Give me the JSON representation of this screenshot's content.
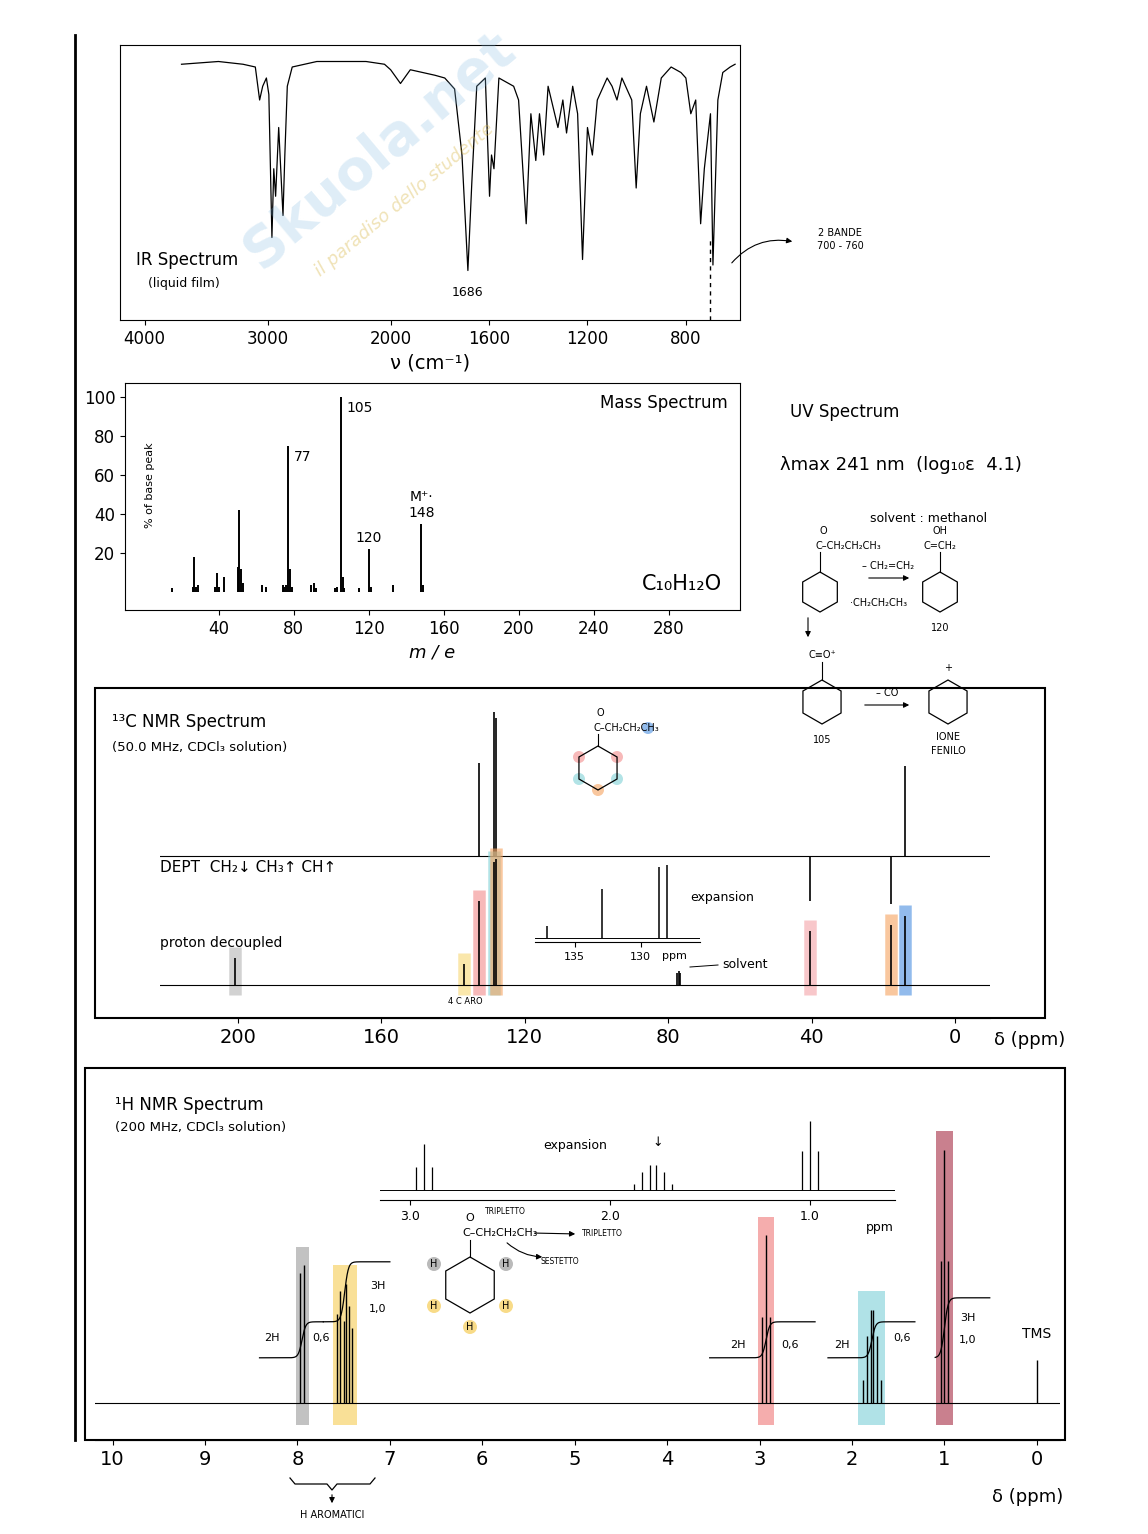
{
  "page": {
    "watermark": [
      "Skuola.net",
      "il paradiso dello studente"
    ]
  },
  "uv": {
    "title": "UV Spectrum",
    "text": "λmax 241 nm  (log₁₀ε  4.1)",
    "solvent": "solvent : methanol"
  },
  "fragmentation": [
    "O",
    "C–CH₂CH₂CH₃",
    "– CH₂=CH₂",
    "OH",
    "C=CH₂",
    "120",
    "·CH₂CH₂CH₃",
    "C≡O⁺",
    "105",
    "– CO",
    "IONE",
    "FENILO",
    "+"
  ],
  "chart_data": [
    {
      "type": "ir",
      "title": "IR Spectrum",
      "subtitle": "(liquid film)",
      "x_label": "ν (cm⁻¹)",
      "xlim": [
        4200,
        580
      ],
      "xticks": [
        4000,
        3000,
        2000,
        1600,
        1200,
        800
      ],
      "ylim": [
        0,
        100
      ],
      "tick_labels": "x",
      "x": [
        3700,
        3400,
        3200,
        3100,
        3065,
        3040,
        3010,
        2990,
        2965,
        2950,
        2935,
        2910,
        2875,
        2860,
        2840,
        2800,
        2600,
        2400,
        2200,
        2050,
        2000,
        1960,
        1920,
        1870,
        1820,
        1780,
        1740,
        1710,
        1686,
        1670,
        1650,
        1615,
        1598,
        1590,
        1580,
        1560,
        1500,
        1480,
        1449,
        1430,
        1410,
        1395,
        1378,
        1360,
        1320,
        1300,
        1285,
        1260,
        1240,
        1220,
        1200,
        1180,
        1160,
        1120,
        1100,
        1080,
        1060,
        1020,
        1002,
        985,
        960,
        930,
        900,
        860,
        820,
        800,
        780,
        760,
        740,
        725,
        700,
        690,
        670,
        650,
        620,
        600
      ],
      "values": [
        93,
        94,
        93,
        92,
        80,
        85,
        88,
        82,
        30,
        55,
        45,
        70,
        38,
        60,
        85,
        92,
        94,
        94,
        94,
        93,
        91,
        86,
        91,
        90,
        89,
        88,
        84,
        60,
        18,
        50,
        85,
        88,
        45,
        60,
        55,
        88,
        85,
        80,
        35,
        75,
        58,
        75,
        60,
        85,
        70,
        80,
        68,
        85,
        75,
        22,
        70,
        60,
        80,
        88,
        85,
        80,
        88,
        80,
        48,
        75,
        85,
        72,
        88,
        92,
        90,
        88,
        75,
        80,
        35,
        55,
        75,
        20,
        80,
        90,
        92,
        93
      ],
      "labeled_peaks": [
        1686
      ],
      "marked_x": [
        700
      ],
      "annotations": [
        "2 BANDE",
        "700 - 760"
      ]
    },
    {
      "type": "mass",
      "title": "Mass Spectrum",
      "y_label": "% of base peak",
      "x_label": "m / e",
      "formula": "C₁₀H₁₂O",
      "xlim": [
        -10,
        318
      ],
      "xticks": [
        40,
        80,
        120,
        160,
        200,
        240,
        280
      ],
      "ylim": [
        -9,
        107
      ],
      "yticks": [
        20,
        40,
        60,
        80,
        100
      ],
      "x": [
        15,
        26,
        27,
        28,
        29,
        38,
        39,
        40,
        43,
        50,
        51,
        52,
        53,
        63,
        65,
        74,
        75,
        76,
        77,
        78,
        79,
        89,
        91,
        92,
        102,
        103,
        105,
        106,
        107,
        115,
        120,
        121,
        133,
        148,
        149
      ],
      "values": [
        2,
        3,
        18,
        3,
        4,
        3,
        10,
        3,
        8,
        13,
        42,
        12,
        5,
        4,
        3,
        4,
        3,
        4,
        75,
        12,
        3,
        4,
        5,
        2,
        2,
        3,
        100,
        8,
        2,
        2,
        22,
        3,
        4,
        35,
        4
      ],
      "peak_labels": [
        null,
        null,
        null,
        null,
        null,
        null,
        null,
        null,
        null,
        null,
        null,
        null,
        null,
        null,
        null,
        null,
        null,
        null,
        "77",
        null,
        null,
        null,
        null,
        null,
        null,
        null,
        "105",
        null,
        null,
        null,
        "120",
        null,
        null,
        "148",
        null
      ],
      "molecular_ion_label": "M⁺·"
    },
    {
      "type": "c13nmr",
      "title": "¹³C NMR Spectrum",
      "subtitle": "(50.0 MHz, CDCl₃ solution)",
      "x_label": "δ (ppm)",
      "xlim": [
        221.8,
        -9.8
      ],
      "xticks": [
        200,
        160,
        120,
        80,
        40,
        0
      ],
      "tick_labels": "x",
      "dept": {
        "name": "DEPT  CH₂↓ CH₃↑ CH↑",
        "ylim": [
          -1.8,
          5.2
        ],
        "x": [
          132.9,
          128.6,
          128.0,
          40.5,
          17.8,
          13.9
        ],
        "values": [
          3.1,
          4.8,
          4.6,
          -1.5,
          -1.6,
          3.0
        ]
      },
      "decoupled": {
        "name": "proton decoupled",
        "ylim": [
          -1.1,
          4.83
        ],
        "x": [
          200.8,
          137.1,
          132.9,
          128.6,
          128.0,
          77.4,
          77.0,
          76.6,
          40.5,
          17.8,
          13.9
        ],
        "values": [
          0.9,
          0.7,
          2.8,
          4.1,
          4.2,
          0.4,
          0.45,
          0.4,
          1.8,
          2.0,
          2.3
        ],
        "colors": [
          "#b5b5b5",
          "#f7d774",
          "#f28b8b",
          "#7fd1d6",
          "#f5a25d",
          null,
          null,
          null,
          "#f4a3a8",
          "#f5a25d",
          "#4a8fe0"
        ]
      },
      "inset": {
        "title": "expansion",
        "x_label": "ppm",
        "xlim": [
          138,
          125.5
        ],
        "xticks": [
          135,
          130
        ],
        "ylim": [
          -0.23,
          4.48
        ],
        "tick_labels": "x"
      },
      "annotations": [
        "solvent",
        "4 C ARO"
      ],
      "structure": [
        "O",
        "C–CH₂CH₂CH₃"
      ]
    },
    {
      "type": "h1nmr",
      "title": "¹H NMR Spectrum",
      "subtitle": "(200 MHz, CDCl₃ solution)",
      "x_label": "δ (ppm)",
      "xlim": [
        10.19,
        -0.25
      ],
      "xticks": [
        10,
        9,
        8,
        7,
        6,
        5,
        4,
        3,
        2,
        1,
        0
      ],
      "ylim": [
        -1,
        9
      ],
      "tick_labels": "x",
      "x": [
        7.97,
        7.93,
        7.57,
        7.54,
        7.5,
        7.47,
        7.44,
        7.41,
        2.97,
        2.93,
        2.89,
        1.88,
        1.84,
        1.8,
        1.77,
        1.73,
        1.69,
        1.04,
        1.0,
        0.96,
        0.0
      ],
      "values": [
        3.5,
        3.7,
        2.4,
        3.0,
        2.2,
        3.2,
        2.6,
        2.0,
        2.3,
        4.5,
        2.3,
        0.6,
        1.8,
        2.5,
        2.5,
        1.8,
        0.6,
        3.8,
        6.8,
        3.8,
        1.15
      ],
      "colors": [
        "#a9a9a9",
        "#a9a9a9",
        "#f7d36b",
        "#f7d36b",
        "#f7d36b",
        "#f7d36b",
        "#f7d36b",
        "#f7d36b",
        "#f28b8b",
        "#f28b8b",
        "#f28b8b",
        "#8fd6dd",
        "#8fd6dd",
        "#8fd6dd",
        "#8fd6dd",
        "#8fd6dd",
        "#8fd6dd",
        "#b34a5e",
        "#b34a5e",
        "#b34a5e",
        null
      ],
      "peak_labels": [
        null,
        null,
        null,
        null,
        null,
        null,
        null,
        null,
        null,
        null,
        null,
        null,
        null,
        null,
        null,
        null,
        null,
        null,
        null,
        null,
        "TMS"
      ],
      "integral_ylim": [
        -1.37,
        4.83
      ],
      "integrals": [
        {
          "from": 8.41,
          "to": 7.72,
          "protons": "2H",
          "value": 0.6,
          "value_label": "0,6"
        },
        {
          "from": 7.72,
          "to": 7.0,
          "protons": "3H",
          "value": 1.0,
          "value_label": "1,0"
        },
        {
          "from": 3.54,
          "to": 2.4,
          "protons": "2H",
          "value": 0.6,
          "value_label": "0,6"
        },
        {
          "from": 2.26,
          "to": 1.32,
          "protons": "2H",
          "value": 0.6,
          "value_label": "0,6"
        },
        {
          "from": 1.1,
          "to": 0.51,
          "protons": "3H",
          "value": 1.0,
          "value_label": "1,0"
        }
      ],
      "inset": {
        "title": "expansion",
        "x_label": "ppm",
        "xlim": [
          3.15,
          0.575
        ],
        "ylim": [
          -1,
          6.9
        ],
        "tick_labels": "x",
        "xticks": [
          {
            "value": 3,
            "label": "3.0"
          },
          {
            "value": 2,
            "label": "2.0"
          },
          {
            "value": 1,
            "label": "1.0"
          }
        ],
        "annotations": [
          "↓"
        ]
      },
      "structure": [
        "O",
        "C–CH₂CH₂CH₃",
        "H",
        "H",
        "H",
        "H",
        "H"
      ],
      "annotations": [
        "TRIPLETTO",
        "SESTETTO",
        "TRIPLETTO",
        "H AROMATICI"
      ]
    }
  ]
}
